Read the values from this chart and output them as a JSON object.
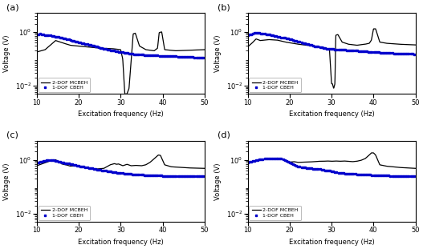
{
  "panels": [
    "(a)",
    "(b)",
    "(c)",
    "(d)"
  ],
  "xlim": [
    10,
    50
  ],
  "ylim": [
    0.005,
    5
  ],
  "xlabel": "Excitation frequency (Hz)",
  "ylabel": "Voltage (V)",
  "legend1": "2-DOF MCBEH",
  "legend2": "1-DOF CBEH",
  "xticks": [
    10,
    20,
    30,
    40,
    50
  ],
  "yticks": [
    0.01,
    1.0
  ],
  "solid_color": "#000000",
  "dashed_color": "#0000cc",
  "background": "#ffffff"
}
